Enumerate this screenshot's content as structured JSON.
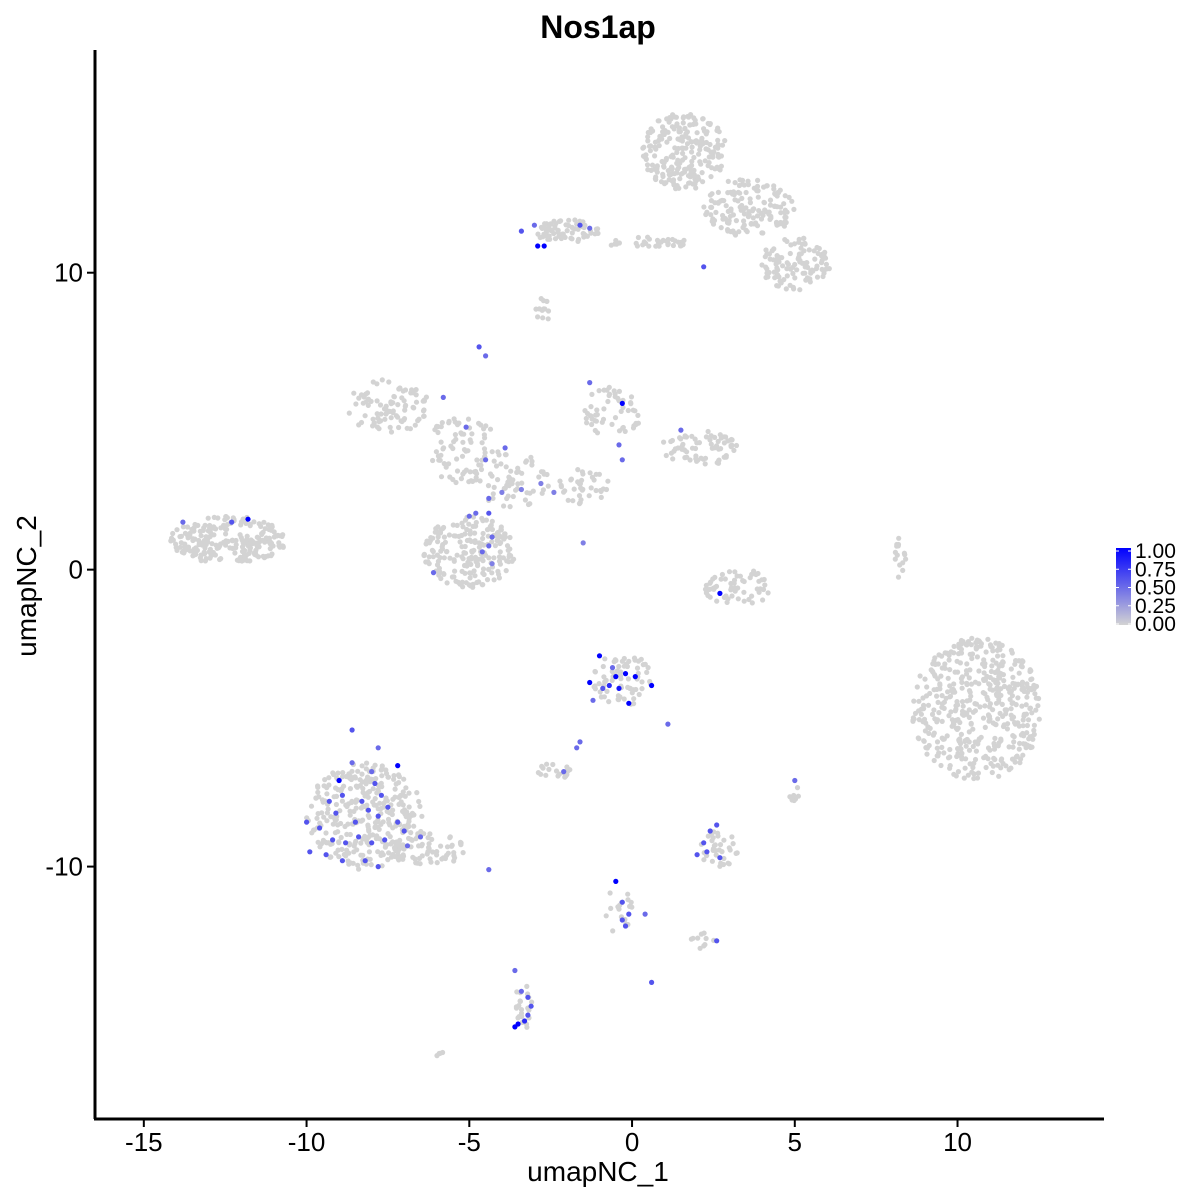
{
  "chart_data": {
    "type": "scatter",
    "title": "Nos1ap",
    "xlabel": "umapNC_1",
    "ylabel": "umapNC_2",
    "xlim": [
      -16.5,
      14.5
    ],
    "ylim": [
      -18.5,
      17.5
    ],
    "x_ticks": [
      -15,
      -10,
      -5,
      0,
      5,
      10
    ],
    "x_tick_labels": [
      "-15",
      "-10",
      "-5",
      "0",
      "5",
      "10"
    ],
    "y_ticks": [
      -10,
      0,
      10
    ],
    "y_tick_labels": [
      "-10",
      "0",
      "10"
    ],
    "grid": false,
    "legend": {
      "placement": "right",
      "type": "colorbar",
      "values": [
        0.0,
        0.25,
        0.5,
        0.75,
        1.0
      ],
      "labels": [
        "0.00",
        "0.25",
        "0.50",
        "0.75",
        "1.00"
      ]
    },
    "colors": {
      "low": "#d3d3d3",
      "high": "#0000ff"
    },
    "clusters": [
      {
        "cx": 1.6,
        "cy": 14.1,
        "rx": 1.3,
        "ry": 1.3,
        "n": 230
      },
      {
        "cx": 3.6,
        "cy": 12.2,
        "rx": 1.4,
        "ry": 1.0,
        "n": 150
      },
      {
        "cx": 5.0,
        "cy": 10.3,
        "rx": 1.1,
        "ry": 0.9,
        "n": 110
      },
      {
        "cx": -2.0,
        "cy": 11.4,
        "rx": 1.0,
        "ry": 0.4,
        "n": 70
      },
      {
        "cx": 0.5,
        "cy": 11.0,
        "rx": 1.3,
        "ry": 0.2,
        "n": 35
      },
      {
        "cx": -2.7,
        "cy": 8.8,
        "rx": 0.3,
        "ry": 0.4,
        "n": 12
      },
      {
        "cx": -7.5,
        "cy": 5.5,
        "rx": 1.3,
        "ry": 0.9,
        "n": 90
      },
      {
        "cx": -5.2,
        "cy": 4.0,
        "rx": 1.2,
        "ry": 1.2,
        "n": 80
      },
      {
        "cx": -3.7,
        "cy": 3.0,
        "rx": 1.2,
        "ry": 0.9,
        "n": 60
      },
      {
        "cx": -1.5,
        "cy": 2.8,
        "rx": 0.8,
        "ry": 0.6,
        "n": 40
      },
      {
        "cx": -0.6,
        "cy": 5.3,
        "rx": 0.9,
        "ry": 0.9,
        "n": 55
      },
      {
        "cx": 2.1,
        "cy": 4.1,
        "rx": 1.2,
        "ry": 0.6,
        "n": 70
      },
      {
        "cx": -5.0,
        "cy": 0.6,
        "rx": 1.4,
        "ry": 1.2,
        "n": 200
      },
      {
        "cx": -12.4,
        "cy": 1.0,
        "rx": 1.8,
        "ry": 0.8,
        "n": 230
      },
      {
        "cx": 3.3,
        "cy": -0.6,
        "rx": 1.1,
        "ry": 0.6,
        "n": 60
      },
      {
        "cx": 10.6,
        "cy": -4.7,
        "rx": 2.0,
        "ry": 2.4,
        "n": 480
      },
      {
        "cx": -8.2,
        "cy": -8.3,
        "rx": 1.8,
        "ry": 1.8,
        "n": 330
      },
      {
        "cx": -6.3,
        "cy": -9.4,
        "rx": 1.2,
        "ry": 0.6,
        "n": 60
      },
      {
        "cx": -0.3,
        "cy": -3.7,
        "rx": 0.9,
        "ry": 0.9,
        "n": 70
      },
      {
        "cx": -2.4,
        "cy": -6.8,
        "rx": 0.5,
        "ry": 0.3,
        "n": 20
      },
      {
        "cx": 2.7,
        "cy": -9.4,
        "rx": 0.6,
        "ry": 0.7,
        "n": 35
      },
      {
        "cx": -3.3,
        "cy": -14.7,
        "rx": 0.3,
        "ry": 0.8,
        "n": 22
      },
      {
        "cx": -0.4,
        "cy": -11.5,
        "rx": 0.4,
        "ry": 0.9,
        "n": 18
      },
      {
        "cx": 2.2,
        "cy": -12.5,
        "rx": 0.4,
        "ry": 0.3,
        "n": 10
      },
      {
        "cx": 8.2,
        "cy": 0.4,
        "rx": 0.25,
        "ry": 0.8,
        "n": 15
      },
      {
        "cx": 5.0,
        "cy": -7.5,
        "rx": 0.2,
        "ry": 0.3,
        "n": 8
      },
      {
        "cx": -6.0,
        "cy": -16.3,
        "rx": 0.2,
        "ry": 0.1,
        "n": 4
      }
    ],
    "expressing_points": [
      {
        "x": -11.8,
        "y": 1.7,
        "v": 1.0
      },
      {
        "x": -12.3,
        "y": 1.6,
        "v": 0.6
      },
      {
        "x": -13.8,
        "y": 1.6,
        "v": 0.5
      },
      {
        "x": -2.7,
        "y": 10.9,
        "v": 1.0
      },
      {
        "x": -2.9,
        "y": 10.9,
        "v": 1.0
      },
      {
        "x": -3.4,
        "y": 11.4,
        "v": 0.6
      },
      {
        "x": -3.0,
        "y": 11.6,
        "v": 0.5
      },
      {
        "x": -1.6,
        "y": 11.6,
        "v": 0.6
      },
      {
        "x": -1.3,
        "y": 11.5,
        "v": 0.5
      },
      {
        "x": 2.2,
        "y": 10.2,
        "v": 0.6
      },
      {
        "x": -0.3,
        "y": 5.6,
        "v": 1.0
      },
      {
        "x": -1.3,
        "y": 6.3,
        "v": 0.5
      },
      {
        "x": -4.7,
        "y": 7.5,
        "v": 0.6
      },
      {
        "x": -4.5,
        "y": 7.2,
        "v": 0.5
      },
      {
        "x": -5.1,
        "y": 4.8,
        "v": 0.5
      },
      {
        "x": -5.8,
        "y": 5.8,
        "v": 0.5
      },
      {
        "x": -4.5,
        "y": 3.7,
        "v": 0.5
      },
      {
        "x": -3.9,
        "y": 4.1,
        "v": 0.5
      },
      {
        "x": -4.4,
        "y": 2.4,
        "v": 0.5
      },
      {
        "x": -4.8,
        "y": 1.9,
        "v": 0.5
      },
      {
        "x": -4.4,
        "y": 1.9,
        "v": 0.6
      },
      {
        "x": -4.3,
        "y": 1.1,
        "v": 0.5
      },
      {
        "x": -4.4,
        "y": 0.8,
        "v": 0.5
      },
      {
        "x": -4.6,
        "y": 0.6,
        "v": 0.5
      },
      {
        "x": -4.3,
        "y": 0.2,
        "v": 0.4
      },
      {
        "x": -5.0,
        "y": 1.8,
        "v": 0.5
      },
      {
        "x": -6.1,
        "y": -0.1,
        "v": 0.5
      },
      {
        "x": -4.0,
        "y": 2.6,
        "v": 0.4
      },
      {
        "x": -3.4,
        "y": 2.7,
        "v": 0.4
      },
      {
        "x": -2.4,
        "y": 2.6,
        "v": 0.4
      },
      {
        "x": -2.8,
        "y": 2.9,
        "v": 0.4
      },
      {
        "x": -1.5,
        "y": 0.9,
        "v": 0.4
      },
      {
        "x": -0.4,
        "y": 4.2,
        "v": 0.5
      },
      {
        "x": -0.3,
        "y": 3.7,
        "v": 0.5
      },
      {
        "x": 1.5,
        "y": 4.7,
        "v": 0.5
      },
      {
        "x": 2.7,
        "y": -0.8,
        "v": 1.0
      },
      {
        "x": -1.0,
        "y": -2.9,
        "v": 1.0
      },
      {
        "x": -1.3,
        "y": -3.8,
        "v": 1.0
      },
      {
        "x": -0.5,
        "y": -3.6,
        "v": 1.0
      },
      {
        "x": -0.2,
        "y": -3.5,
        "v": 1.0
      },
      {
        "x": 0.1,
        "y": -3.6,
        "v": 1.0
      },
      {
        "x": -0.1,
        "y": -4.5,
        "v": 1.0
      },
      {
        "x": 0.6,
        "y": -3.9,
        "v": 1.0
      },
      {
        "x": -0.4,
        "y": -4.0,
        "v": 0.9
      },
      {
        "x": -0.7,
        "y": -3.9,
        "v": 0.8
      },
      {
        "x": -0.9,
        "y": -4.0,
        "v": 0.6
      },
      {
        "x": -1.2,
        "y": -4.4,
        "v": 0.5
      },
      {
        "x": -0.6,
        "y": -3.3,
        "v": 0.5
      },
      {
        "x": 1.1,
        "y": -5.2,
        "v": 0.5
      },
      {
        "x": -1.6,
        "y": -5.8,
        "v": 0.5
      },
      {
        "x": -1.7,
        "y": -6.0,
        "v": 0.5
      },
      {
        "x": -2.1,
        "y": -6.8,
        "v": 0.5
      },
      {
        "x": -7.2,
        "y": -6.6,
        "v": 1.0
      },
      {
        "x": -9.0,
        "y": -7.1,
        "v": 1.0
      },
      {
        "x": -8.6,
        "y": -5.4,
        "v": 0.6
      },
      {
        "x": -8.9,
        "y": -7.6,
        "v": 0.6
      },
      {
        "x": -8.3,
        "y": -7.8,
        "v": 0.6
      },
      {
        "x": -7.9,
        "y": -7.2,
        "v": 0.6
      },
      {
        "x": -7.7,
        "y": -7.6,
        "v": 0.6
      },
      {
        "x": -9.3,
        "y": -7.8,
        "v": 0.6
      },
      {
        "x": -9.1,
        "y": -8.2,
        "v": 0.6
      },
      {
        "x": -8.5,
        "y": -8.5,
        "v": 0.6
      },
      {
        "x": -8.1,
        "y": -8.1,
        "v": 0.6
      },
      {
        "x": -7.8,
        "y": -8.3,
        "v": 0.6
      },
      {
        "x": -7.5,
        "y": -8.0,
        "v": 0.6
      },
      {
        "x": -7.2,
        "y": -8.5,
        "v": 0.6
      },
      {
        "x": -9.6,
        "y": -8.7,
        "v": 0.6
      },
      {
        "x": -9.2,
        "y": -9.1,
        "v": 0.6
      },
      {
        "x": -8.8,
        "y": -9.2,
        "v": 0.6
      },
      {
        "x": -8.4,
        "y": -9.0,
        "v": 0.6
      },
      {
        "x": -8.0,
        "y": -9.2,
        "v": 0.6
      },
      {
        "x": -7.6,
        "y": -9.1,
        "v": 0.6
      },
      {
        "x": -9.9,
        "y": -9.5,
        "v": 0.6
      },
      {
        "x": -9.4,
        "y": -9.6,
        "v": 0.6
      },
      {
        "x": -8.9,
        "y": -9.8,
        "v": 0.6
      },
      {
        "x": -8.2,
        "y": -9.8,
        "v": 0.6
      },
      {
        "x": -7.8,
        "y": -10.0,
        "v": 0.6
      },
      {
        "x": -10.0,
        "y": -8.5,
        "v": 0.6
      },
      {
        "x": -7.0,
        "y": -8.8,
        "v": 0.6
      },
      {
        "x": -6.9,
        "y": -9.3,
        "v": 0.5
      },
      {
        "x": -6.5,
        "y": -9.0,
        "v": 0.5
      },
      {
        "x": -4.4,
        "y": -10.1,
        "v": 0.5
      },
      {
        "x": -8.6,
        "y": -6.5,
        "v": 0.5
      },
      {
        "x": -8.0,
        "y": -6.8,
        "v": 0.5
      },
      {
        "x": -7.8,
        "y": -6.0,
        "v": 0.5
      },
      {
        "x": 5.0,
        "y": -7.1,
        "v": 0.5
      },
      {
        "x": 2.4,
        "y": -8.8,
        "v": 0.6
      },
      {
        "x": 2.6,
        "y": -8.6,
        "v": 0.6
      },
      {
        "x": 2.3,
        "y": -9.5,
        "v": 0.6
      },
      {
        "x": 2.0,
        "y": -9.6,
        "v": 0.6
      },
      {
        "x": 2.7,
        "y": -9.7,
        "v": 0.6
      },
      {
        "x": 2.2,
        "y": -9.2,
        "v": 0.6
      },
      {
        "x": 2.6,
        "y": -12.5,
        "v": 0.6
      },
      {
        "x": -0.5,
        "y": -10.5,
        "v": 1.0
      },
      {
        "x": -0.3,
        "y": -11.2,
        "v": 0.6
      },
      {
        "x": -0.1,
        "y": -11.6,
        "v": 0.6
      },
      {
        "x": -0.3,
        "y": -11.8,
        "v": 0.6
      },
      {
        "x": -0.2,
        "y": -12.0,
        "v": 0.6
      },
      {
        "x": 0.4,
        "y": -11.6,
        "v": 0.5
      },
      {
        "x": 0.6,
        "y": -13.9,
        "v": 0.6
      },
      {
        "x": -3.6,
        "y": -15.4,
        "v": 1.0
      },
      {
        "x": -3.5,
        "y": -15.3,
        "v": 1.0
      },
      {
        "x": -3.3,
        "y": -15.2,
        "v": 0.8
      },
      {
        "x": -3.2,
        "y": -15.0,
        "v": 0.6
      },
      {
        "x": -3.1,
        "y": -14.7,
        "v": 0.6
      },
      {
        "x": -3.2,
        "y": -14.4,
        "v": 0.6
      },
      {
        "x": -3.6,
        "y": -13.5,
        "v": 0.5
      },
      {
        "x": -3.4,
        "y": -14.2,
        "v": 0.5
      }
    ]
  }
}
